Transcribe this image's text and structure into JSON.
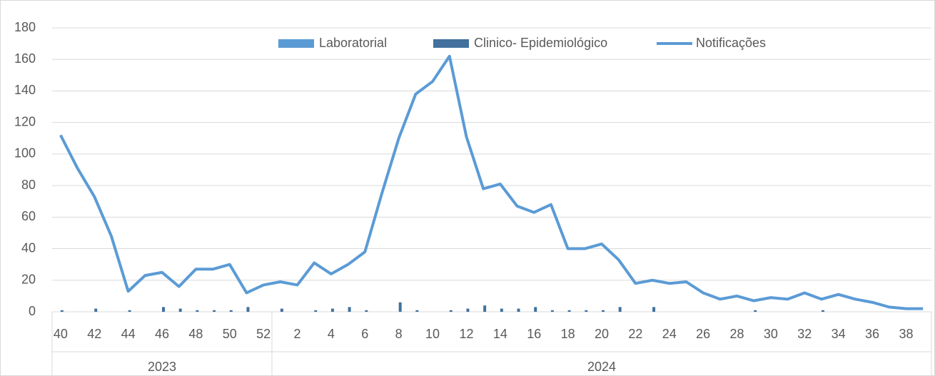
{
  "chart_data": {
    "type": "bar-line",
    "groups": [
      {
        "name": "2023",
        "categories": [
          "40",
          null,
          "42",
          null,
          "44",
          null,
          "46",
          null,
          "48",
          null,
          "50",
          null,
          "52"
        ]
      },
      {
        "name": "2024",
        "categories": [
          null,
          "2",
          null,
          "4",
          null,
          "6",
          null,
          "8",
          null,
          "10",
          null,
          "12",
          null,
          "14",
          null,
          "16",
          null,
          "18",
          null,
          "20",
          null,
          "22",
          null,
          "24",
          null,
          "26",
          null,
          "28",
          null,
          "30",
          null,
          "32",
          null,
          "34",
          null,
          "36",
          null,
          "38",
          null
        ]
      }
    ],
    "series": [
      {
        "name": "Laboratorial",
        "type": "bar",
        "color": "#5b9bd5",
        "values": [
          0,
          0,
          0,
          0,
          0,
          0,
          0,
          0,
          0,
          0,
          0,
          0,
          0,
          0,
          0,
          0,
          0,
          0,
          0,
          0,
          0,
          0,
          0,
          0,
          0,
          0,
          0,
          0,
          0,
          0,
          0,
          0,
          0,
          0,
          0,
          0,
          0,
          0,
          0,
          0,
          0,
          0,
          0,
          0,
          0,
          0,
          0,
          0,
          0,
          0,
          0,
          0
        ]
      },
      {
        "name": "Clinico- Epidemiológico",
        "type": "bar",
        "color": "#41719c",
        "values": [
          1,
          0,
          2,
          0,
          1,
          0,
          3,
          2,
          1,
          1,
          1,
          3,
          0,
          2,
          0,
          1,
          2,
          3,
          1,
          0,
          6,
          1,
          0,
          1,
          2,
          4,
          2,
          2,
          3,
          1,
          1,
          1,
          1,
          3,
          0,
          3,
          0,
          0,
          0,
          0,
          0,
          1,
          0,
          0,
          0,
          1,
          0,
          0,
          0,
          0,
          0,
          0
        ]
      },
      {
        "name": "Notificações",
        "type": "line",
        "color": "#5b9bd5",
        "values": [
          112,
          91,
          73,
          48,
          13,
          23,
          25,
          16,
          27,
          27,
          30,
          12,
          17,
          19,
          17,
          31,
          24,
          30,
          38,
          75,
          110,
          138,
          146,
          162,
          111,
          78,
          81,
          67,
          63,
          68,
          40,
          40,
          43,
          33,
          18,
          20,
          18,
          19,
          12,
          8,
          10,
          7,
          9,
          8,
          12,
          8,
          11,
          8,
          6,
          3,
          2,
          2
        ]
      }
    ],
    "ylim": [
      0,
      180
    ],
    "yticks": [
      0,
      20,
      40,
      60,
      80,
      100,
      120,
      140,
      160,
      180
    ],
    "grid": true,
    "legend": "top"
  }
}
